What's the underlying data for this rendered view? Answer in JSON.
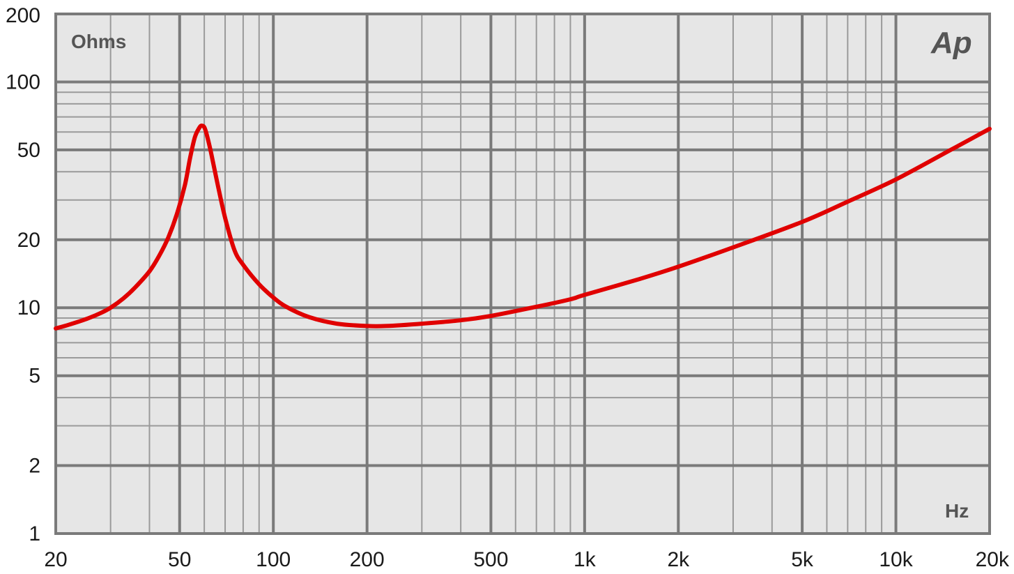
{
  "chart_data": {
    "type": "line",
    "title": "",
    "ylabel": "Ohms",
    "xlabel": "Hz",
    "logo": "Ap",
    "x_scale": "log",
    "y_scale": "log",
    "xlim": [
      20,
      20000
    ],
    "ylim": [
      1,
      200
    ],
    "grid": true,
    "x_ticks": [
      {
        "value": 20,
        "label": "20"
      },
      {
        "value": 50,
        "label": "50"
      },
      {
        "value": 100,
        "label": "100"
      },
      {
        "value": 200,
        "label": "200"
      },
      {
        "value": 500,
        "label": "500"
      },
      {
        "value": 1000,
        "label": "1k"
      },
      {
        "value": 2000,
        "label": "2k"
      },
      {
        "value": 5000,
        "label": "5k"
      },
      {
        "value": 10000,
        "label": "10k"
      },
      {
        "value": 20000,
        "label": "20k"
      }
    ],
    "y_ticks": [
      {
        "value": 1,
        "label": "1"
      },
      {
        "value": 2,
        "label": "2"
      },
      {
        "value": 5,
        "label": "5"
      },
      {
        "value": 10,
        "label": "10"
      },
      {
        "value": 20,
        "label": "20"
      },
      {
        "value": 50,
        "label": "50"
      },
      {
        "value": 100,
        "label": "100"
      },
      {
        "value": 200,
        "label": "200"
      }
    ],
    "series": [
      {
        "color": "#e00000",
        "x": [
          20,
          22,
          25,
          28,
          30,
          33,
          36,
          40,
          43,
          46,
          49,
          52,
          54,
          56,
          58,
          59,
          60,
          61,
          63,
          66,
          70,
          75,
          80,
          90,
          100,
          110,
          130,
          160,
          200,
          230,
          300,
          400,
          500,
          700,
          900,
          1000,
          1500,
          2000,
          3000,
          5000,
          7000,
          10000,
          15000,
          20000
        ],
        "y": [
          8.1,
          8.4,
          8.9,
          9.5,
          10.0,
          11.0,
          12.3,
          14.5,
          17.0,
          20.5,
          26.0,
          35.0,
          46.0,
          57.0,
          63.0,
          64.0,
          63.0,
          59.0,
          49.0,
          36.0,
          25.0,
          18.0,
          15.5,
          12.7,
          11.1,
          10.1,
          9.1,
          8.5,
          8.3,
          8.3,
          8.5,
          8.8,
          9.2,
          10.1,
          10.9,
          11.4,
          13.4,
          15.2,
          18.5,
          24.0,
          29.5,
          37.0,
          50.0,
          62.0
        ]
      }
    ]
  }
}
